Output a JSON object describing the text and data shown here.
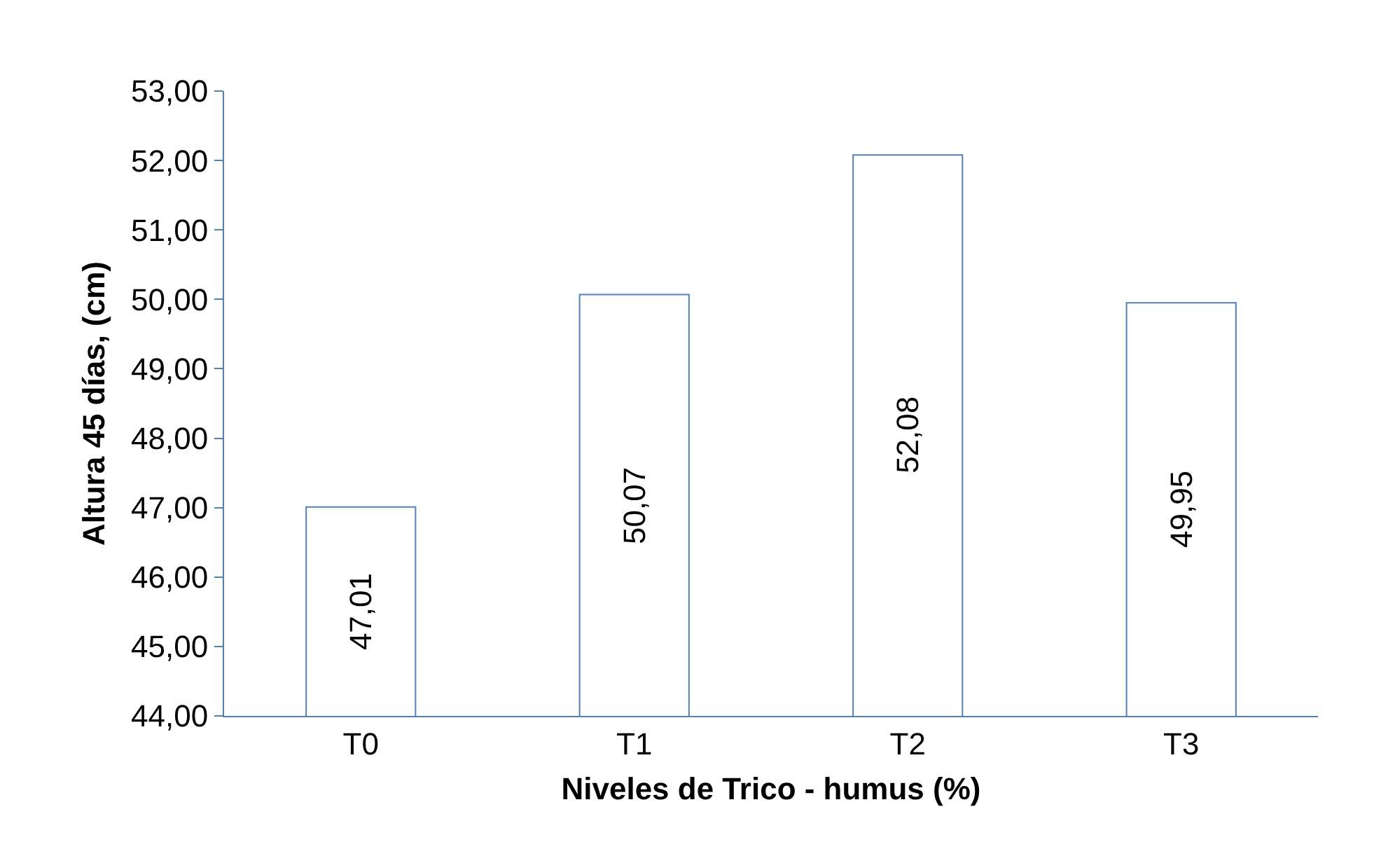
{
  "chart_data": {
    "type": "bar",
    "xlabel": "Niveles de Trico - humus (%)",
    "ylabel": "Altura 45 días, (cm)",
    "categories": [
      "T0",
      "T1",
      "T2",
      "T3"
    ],
    "values": [
      47.01,
      50.07,
      52.08,
      49.95
    ],
    "value_labels": [
      "47,01",
      "50,07",
      "52,08",
      "49,95"
    ],
    "color": "#ffffff",
    "ylim": [
      44,
      53
    ],
    "yticks": [
      {
        "value": 44,
        "label": "44,00"
      },
      {
        "value": 45,
        "label": "45,00"
      },
      {
        "value": 46,
        "label": "46,00"
      },
      {
        "value": 47,
        "label": "47,00"
      },
      {
        "value": 48,
        "label": "48,00"
      },
      {
        "value": 49,
        "label": "49,00"
      },
      {
        "value": 50,
        "label": "50,00"
      },
      {
        "value": 51,
        "label": "51,00"
      },
      {
        "value": 52,
        "label": "52,00"
      },
      {
        "value": 53,
        "label": "53,00"
      }
    ],
    "grid": false
  }
}
